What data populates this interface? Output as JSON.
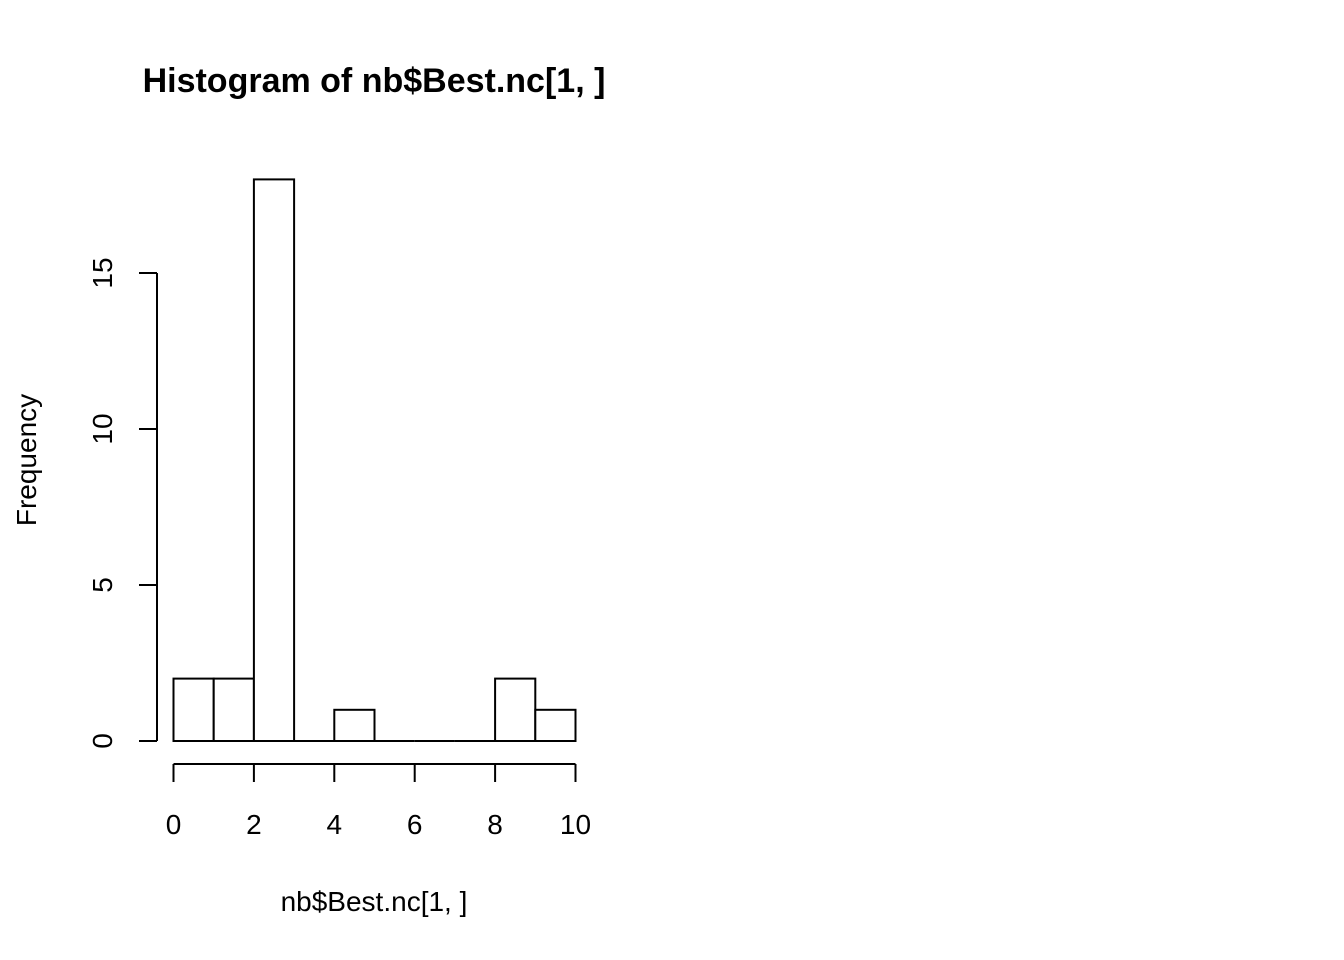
{
  "chart_data": {
    "type": "bar",
    "title": "Histogram of nb$Best.nc[1, ]",
    "xlabel": "nb$Best.nc[1, ]",
    "ylabel": "Frequency",
    "bins": [
      {
        "x0": 0,
        "x1": 1,
        "count": 2
      },
      {
        "x0": 1,
        "x1": 2,
        "count": 2
      },
      {
        "x0": 2,
        "x1": 3,
        "count": 18
      },
      {
        "x0": 3,
        "x1": 4,
        "count": 0
      },
      {
        "x0": 4,
        "x1": 5,
        "count": 1
      },
      {
        "x0": 5,
        "x1": 6,
        "count": 0
      },
      {
        "x0": 6,
        "x1": 7,
        "count": 0
      },
      {
        "x0": 7,
        "x1": 8,
        "count": 0
      },
      {
        "x0": 8,
        "x1": 9,
        "count": 2
      },
      {
        "x0": 9,
        "x1": 10,
        "count": 1
      }
    ],
    "xlim": [
      0,
      10
    ],
    "ylim": [
      0,
      18
    ],
    "x_ticks": [
      0,
      2,
      4,
      6,
      8,
      10
    ],
    "y_ticks": [
      0,
      5,
      10,
      15
    ],
    "grid": false,
    "bar_fill": "#ffffff",
    "bar_stroke": "#000000"
  }
}
